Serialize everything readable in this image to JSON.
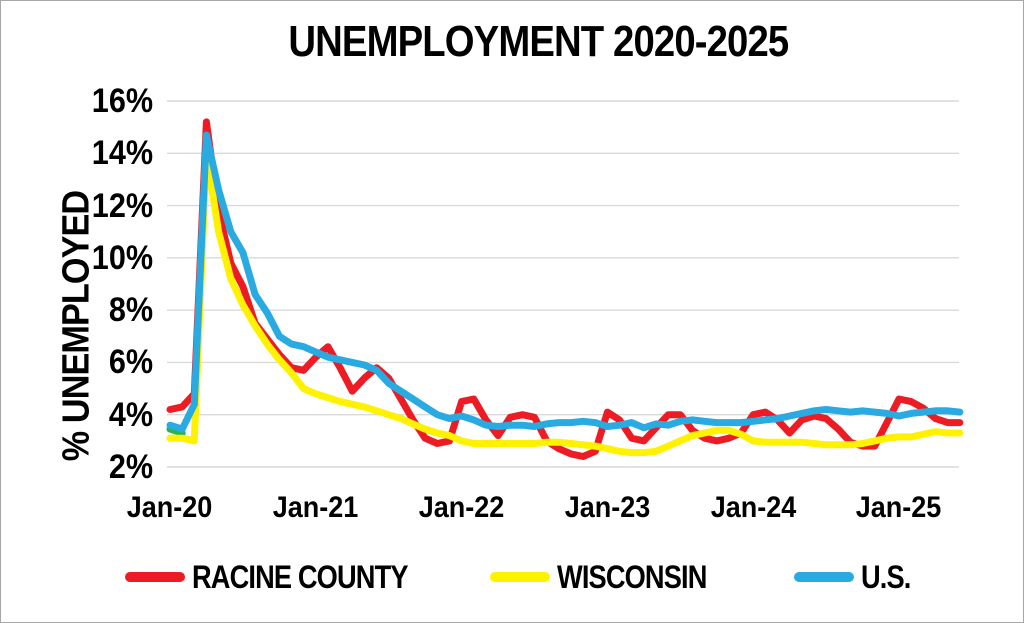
{
  "chart_data": {
    "type": "line",
    "title": "UNEMPLOYMENT 2020-2025",
    "xlabel": "",
    "ylabel": "% UNEMPLOYED",
    "ylim": [
      2,
      16
    ],
    "y_tick_values": [
      2,
      4,
      6,
      8,
      10,
      12,
      14,
      16
    ],
    "y_tick_labels": [
      "2%",
      "4%",
      "6%",
      "8%",
      "10%",
      "12%",
      "14%",
      "16%"
    ],
    "x_tick_labels": [
      "Jan-20",
      "Jan-21",
      "Jan-22",
      "Jan-23",
      "Jan-24",
      "Jan-25"
    ],
    "x_tick_month_indices": [
      0,
      12,
      24,
      36,
      48,
      60
    ],
    "grid": "horizontal",
    "legend_position": "bottom",
    "x": [
      "Jan-20",
      "Feb-20",
      "Mar-20",
      "Apr-20",
      "May-20",
      "Jun-20",
      "Jul-20",
      "Aug-20",
      "Sep-20",
      "Oct-20",
      "Nov-20",
      "Dec-20",
      "Jan-21",
      "Feb-21",
      "Mar-21",
      "Apr-21",
      "May-21",
      "Jun-21",
      "Jul-21",
      "Aug-21",
      "Sep-21",
      "Oct-21",
      "Nov-21",
      "Dec-21",
      "Jan-22",
      "Feb-22",
      "Mar-22",
      "Apr-22",
      "May-22",
      "Jun-22",
      "Jul-22",
      "Aug-22",
      "Sep-22",
      "Oct-22",
      "Nov-22",
      "Dec-22",
      "Jan-23",
      "Feb-23",
      "Mar-23",
      "Apr-23",
      "May-23",
      "Jun-23",
      "Jul-23",
      "Aug-23",
      "Sep-23",
      "Oct-23",
      "Nov-23",
      "Dec-23",
      "Jan-24",
      "Feb-24",
      "Mar-24",
      "Apr-24",
      "May-24",
      "Jun-24",
      "Jul-24",
      "Aug-24",
      "Sep-24",
      "Oct-24",
      "Nov-24",
      "Dec-24",
      "Jan-25",
      "Feb-25",
      "Mar-25",
      "Apr-25",
      "May-25",
      "Jun-25"
    ],
    "series": [
      {
        "name": "RACINE COUNTY",
        "color": "#ED1C24",
        "z": 1,
        "in_legend": true,
        "values": [
          4.2,
          4.3,
          4.8,
          15.2,
          11.8,
          9.8,
          8.9,
          7.5,
          6.9,
          6.3,
          5.8,
          5.7,
          6.2,
          6.6,
          5.8,
          4.9,
          5.4,
          5.8,
          5.4,
          4.6,
          3.8,
          3.1,
          2.9,
          3.0,
          4.5,
          4.6,
          3.8,
          3.2,
          3.9,
          4.0,
          3.9,
          3.0,
          2.7,
          2.5,
          2.4,
          2.6,
          4.1,
          3.8,
          3.1,
          3.0,
          3.5,
          4.0,
          4.0,
          3.4,
          3.1,
          3.0,
          3.1,
          3.3,
          4.0,
          4.1,
          3.8,
          3.3,
          3.8,
          3.95,
          3.85,
          3.45,
          2.95,
          2.8,
          2.8,
          3.7,
          4.6,
          4.5,
          4.25,
          3.85,
          3.7,
          3.7
        ]
      },
      {
        "name": "WISCONSIN",
        "color": "#FFF200",
        "z": 2,
        "in_legend": true,
        "values": [
          3.1,
          3.1,
          3.0,
          14.0,
          11.0,
          9.2,
          8.2,
          7.4,
          6.7,
          6.1,
          5.6,
          5.0,
          4.8,
          4.65,
          4.5,
          4.4,
          4.3,
          4.15,
          4.0,
          3.85,
          3.65,
          3.45,
          3.3,
          3.2,
          3.0,
          2.9,
          2.9,
          2.9,
          2.9,
          2.9,
          2.9,
          2.95,
          2.95,
          2.9,
          2.85,
          2.8,
          2.7,
          2.6,
          2.55,
          2.55,
          2.6,
          2.8,
          3.0,
          3.2,
          3.3,
          3.4,
          3.4,
          3.25,
          3.0,
          2.95,
          2.95,
          2.95,
          2.95,
          2.9,
          2.85,
          2.85,
          2.85,
          2.9,
          3.0,
          3.1,
          3.15,
          3.15,
          3.25,
          3.35,
          3.3,
          3.3
        ]
      },
      {
        "name": "U.S.",
        "color": "#29ABE2",
        "z": 3,
        "in_legend": true,
        "values": [
          3.6,
          3.45,
          4.4,
          14.7,
          12.6,
          11.0,
          10.2,
          8.6,
          7.9,
          7.0,
          6.7,
          6.6,
          6.4,
          6.2,
          6.1,
          6.0,
          5.9,
          5.7,
          5.2,
          4.9,
          4.6,
          4.3,
          4.0,
          3.85,
          3.95,
          3.8,
          3.6,
          3.55,
          3.6,
          3.6,
          3.55,
          3.65,
          3.7,
          3.7,
          3.75,
          3.7,
          3.55,
          3.6,
          3.7,
          3.5,
          3.65,
          3.6,
          3.75,
          3.8,
          3.75,
          3.7,
          3.7,
          3.7,
          3.75,
          3.8,
          3.85,
          3.95,
          4.05,
          4.15,
          4.2,
          4.15,
          4.1,
          4.15,
          4.1,
          4.05,
          3.95,
          4.05,
          4.1,
          4.15,
          4.15,
          4.1
        ]
      },
      {
        "name": "(unlabeled green segment, mostly hidden behind U.S. line)",
        "color": "#2BB34B",
        "z": 0,
        "in_legend": false,
        "values": [
          3.45,
          3.3
        ]
      }
    ]
  },
  "legend": {
    "items": [
      {
        "label": "RACINE COUNTY",
        "color": "#ED1C24"
      },
      {
        "label": "WISCONSIN",
        "color": "#FFF200"
      },
      {
        "label": "U.S.",
        "color": "#29ABE2"
      }
    ]
  },
  "colors": {
    "gridline": "#D9D9D9",
    "background": "#FFFFFF",
    "text": "#000000",
    "frame_border": "#A6A6A6"
  }
}
